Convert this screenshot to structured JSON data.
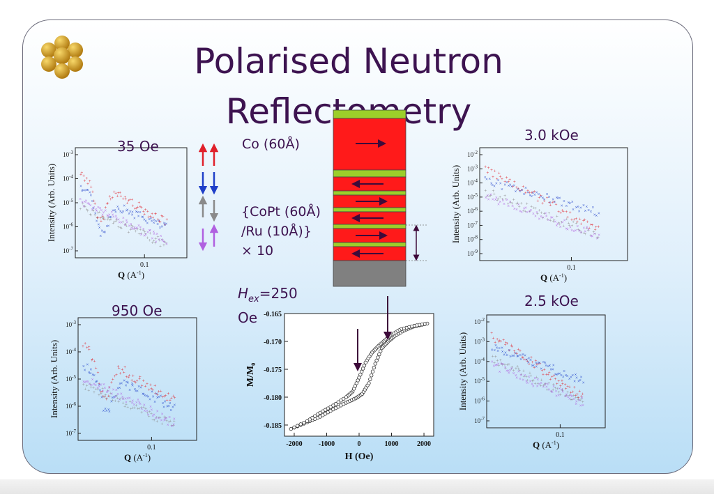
{
  "title": "Polarised Neutron Reflectometry",
  "labels": {
    "field_35": "35 Oe",
    "field_950": "950 Oe",
    "field_3k": "3.0 kOe",
    "field_2_5k": "2.5 kOe",
    "co_layer": "Co (60Å)",
    "copt_line1": "{CoPt (60Å)",
    "copt_line2": "/Ru (10Å)}",
    "copt_line3": "× 10",
    "hex_prefix": "H",
    "hex_sub": "ex",
    "hex_value": "=250",
    "hex_unit": "Oe"
  },
  "axis": {
    "intensity_label": "Intensity (Arb. Units)",
    "q_label": "Q (A⁻¹)",
    "q_tick": "0.1",
    "hyst_x_label": "H (Oe)",
    "hyst_y_label": "M/M₀"
  },
  "colors": {
    "title": "#3d1350",
    "up_up": "#e0202a",
    "down_down": "#1f3fc8",
    "grey": "#8a8a8a",
    "violet": "#b060e0",
    "layer_red": "#ff1a1a",
    "layer_green": "#9ccf2a",
    "substrate": "#808080",
    "arrow_dark": "#3d0a3a"
  },
  "chart_data": [
    {
      "type": "scatter",
      "title": "35 Oe",
      "xlabel": "Q (A-1)",
      "ylabel": "Intensity (Arb. Units)",
      "y_log": true,
      "y_ticks": [
        "10-3",
        "10-4",
        "10-5",
        "10-6",
        "10-7"
      ],
      "x_ticks": [
        "0.1"
      ],
      "series": []
    },
    {
      "type": "scatter",
      "title": "950 Oe",
      "xlabel": "Q (A-1)",
      "ylabel": "Intensity (Arb. Units)",
      "y_log": true,
      "y_ticks": [
        "10-3",
        "10-4",
        "10-5",
        "10-6",
        "10-7"
      ],
      "x_ticks": [
        "0.1"
      ],
      "series": []
    },
    {
      "type": "scatter",
      "title": "3.0 kOe",
      "xlabel": "Q (A-1)",
      "ylabel": "Intensity (Arb. Units)",
      "y_log": true,
      "y_ticks": [
        "10-2",
        "10-3",
        "10-4",
        "10-5",
        "10-6",
        "10-7",
        "10-8",
        "10-9"
      ],
      "x_ticks": [
        "0.1"
      ],
      "series": []
    },
    {
      "type": "scatter",
      "title": "2.5 kOe",
      "xlabel": "Q (A-1)",
      "ylabel": "Intensity (Arb. Units)",
      "y_log": true,
      "y_ticks": [
        "10-2",
        "10-3",
        "10-4",
        "10-5",
        "10-6",
        "10-7"
      ],
      "x_ticks": [
        "0.1"
      ],
      "series": []
    },
    {
      "type": "line",
      "title": "",
      "xlabel": "H (Oe)",
      "ylabel": "M/M0",
      "xlim": [
        -2300,
        2300
      ],
      "ylim": [
        -0.187,
        -0.165
      ],
      "x_ticks": [
        "-2000",
        "-1000",
        "0",
        "1000",
        "2000"
      ],
      "y_ticks": [
        "-0.165",
        "-0.170",
        "-0.175",
        "-0.180",
        "-0.185"
      ],
      "series": [
        {
          "x": [
            -2100,
            -1600,
            -1200,
            -800,
            -400,
            -100,
            100,
            300,
            500,
            700,
            900,
            1100,
            1400,
            1700,
            2100
          ],
          "y": [
            -0.1857,
            -0.1845,
            -0.1835,
            -0.1822,
            -0.181,
            -0.1802,
            -0.1794,
            -0.1775,
            -0.174,
            -0.1712,
            -0.17,
            -0.169,
            -0.168,
            -0.1673,
            -0.1668
          ]
        },
        {
          "x": [
            2100,
            1700,
            1300,
            1000,
            800,
            600,
            400,
            200,
            0,
            -200,
            -400,
            -800,
            -1200,
            -1600,
            -2100
          ],
          "y": [
            -0.1668,
            -0.1672,
            -0.1678,
            -0.1688,
            -0.1698,
            -0.1708,
            -0.172,
            -0.1738,
            -0.1765,
            -0.179,
            -0.18,
            -0.1815,
            -0.1828,
            -0.1843,
            -0.1857
          ]
        }
      ]
    }
  ]
}
